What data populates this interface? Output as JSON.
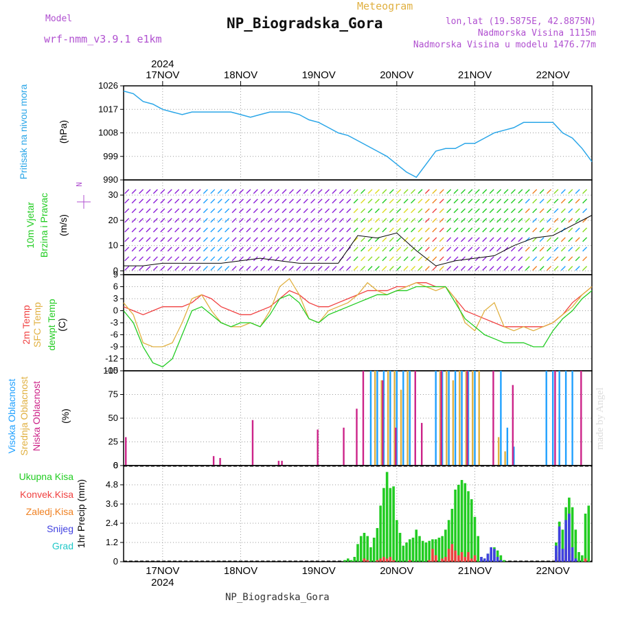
{
  "header": {
    "model_label": "Model",
    "model_name": "wrf-nmm_v3.9.1 e1km",
    "product": "Meteogram",
    "station": "NP_Biogradska_Gora",
    "coords": "lon,lat (19.5875E, 42.8875N)",
    "altitude": "Nadmorska Visina 1115m",
    "model_altitude": "Nadmorska Visina u modelu 1476.77m",
    "footer_station": "NP_Biogradska_Gora",
    "credit": "made by Angel"
  },
  "colors": {
    "pressure": "#2aa6e8",
    "temp2m": "#f04040",
    "sfc_temp": "#e0b040",
    "dewpt": "#22cc22",
    "high_cloud": "#1fa0ff",
    "mid_cloud": "#e0b040",
    "low_cloud": "#cc2288",
    "total_precip": "#22cc22",
    "convective": "#f04040",
    "freezing": "#f08020",
    "snow": "#4040e0",
    "hail": "#20c8c8",
    "wind_violet": "#8c20d8"
  },
  "labels": {
    "pressure": [
      "Pritisak na nivou mora",
      "(hPa)"
    ],
    "wind": [
      "10m Vjetar",
      "Brzina i Pravac",
      "(m/s)"
    ],
    "compass": "N",
    "temp": [
      "2m Temp",
      "SFC Temp",
      "dewpt Temp",
      "(C)"
    ],
    "cloud": [
      "Visoka Oblacnost",
      "Srednja Oblacnost",
      "Niska Oblacnost",
      "(%)"
    ],
    "precip_legend": [
      "Ukupna Kisa",
      "Konvek.Kisa",
      "Zaledj.Kisa",
      "Snijeg",
      "Grad"
    ],
    "precip_axis": "1hr Precip (mm)"
  },
  "chart_data": [
    {
      "type": "line",
      "panel": "pressure",
      "year": "2024",
      "x_ticks": [
        "17NOV",
        "18NOV",
        "19NOV",
        "20NOV",
        "21NOV",
        "22NOV"
      ],
      "ylabel": "(hPa)",
      "ylim": [
        990,
        1026
      ],
      "y_ticks": [
        990,
        999,
        1008,
        1017,
        1026
      ],
      "x_hours": [
        0,
        3,
        6,
        9,
        12,
        15,
        18,
        21,
        24,
        27,
        30,
        33,
        36,
        39,
        42,
        45,
        48,
        51,
        54,
        57,
        60,
        63,
        66,
        69,
        72,
        75,
        78,
        81,
        84,
        87,
        90,
        93,
        96,
        99,
        102,
        105,
        108,
        111,
        114,
        117,
        120,
        123,
        126,
        129,
        132,
        135,
        138,
        141,
        144
      ],
      "series": [
        {
          "name": "Pritisak na nivou mora",
          "values": [
            1024,
            1023,
            1020,
            1019,
            1017,
            1016,
            1015,
            1016,
            1016,
            1016,
            1016,
            1016,
            1015,
            1014,
            1015,
            1016,
            1016,
            1016,
            1015,
            1013,
            1012,
            1010,
            1008,
            1007,
            1005,
            1003,
            1001,
            999,
            996,
            993,
            991,
            996,
            1001,
            1002,
            1002,
            1004,
            1004,
            1006,
            1008,
            1009,
            1010,
            1012,
            1012,
            1012,
            1012,
            1008,
            1006,
            1002,
            997
          ]
        }
      ]
    },
    {
      "type": "line",
      "panel": "wind",
      "ylabel": "(m/s)",
      "ylim": [
        -1.5,
        36
      ],
      "y_ticks": [
        0,
        10,
        20,
        30
      ],
      "x_hours": [
        0,
        6,
        12,
        18,
        24,
        30,
        36,
        42,
        48,
        54,
        60,
        66,
        72,
        78,
        84,
        90,
        96,
        102,
        108,
        114,
        120,
        126,
        132,
        138,
        144
      ],
      "series": [
        {
          "name": "10m Vjetar",
          "values": [
            2,
            2,
            3,
            3,
            3,
            3,
            4,
            5,
            4,
            3,
            3,
            3,
            14,
            13,
            15,
            8,
            2,
            4,
            5,
            6,
            10,
            13,
            14,
            18,
            22
          ]
        }
      ]
    },
    {
      "type": "line",
      "panel": "temperature",
      "ylabel": "(C)",
      "ylim": [
        -15,
        9
      ],
      "y_ticks": [
        -15,
        -12,
        -9,
        -6,
        -3,
        0,
        3,
        6,
        9
      ],
      "x_hours": [
        0,
        3,
        6,
        9,
        12,
        15,
        18,
        21,
        24,
        27,
        30,
        33,
        36,
        39,
        42,
        45,
        48,
        51,
        54,
        57,
        60,
        63,
        66,
        69,
        72,
        75,
        78,
        81,
        84,
        87,
        90,
        93,
        96,
        99,
        102,
        105,
        108,
        111,
        114,
        117,
        120,
        123,
        126,
        129,
        132,
        135,
        138,
        141,
        144
      ],
      "series": [
        {
          "name": "2m Temp",
          "values": [
            1,
            0,
            -1,
            0,
            1,
            1,
            1,
            2,
            4,
            3,
            1,
            0,
            -1,
            -1,
            0,
            1,
            3,
            5,
            4,
            2,
            1,
            1,
            2,
            3,
            4,
            5,
            5,
            5,
            6,
            6,
            7,
            7,
            6,
            6,
            3,
            0,
            -1,
            -2,
            -3,
            -4,
            -4,
            -4,
            -4,
            -4,
            -3,
            -1,
            2,
            4,
            6
          ]
        },
        {
          "name": "SFC Temp",
          "values": [
            2,
            -1,
            -8,
            -9,
            -9,
            -8,
            -3,
            3,
            4,
            0,
            -3,
            -4,
            -4,
            -3,
            -4,
            0,
            6,
            8,
            4,
            -2,
            -3,
            0,
            1,
            2,
            4,
            7,
            5,
            4,
            5,
            6,
            7,
            6,
            5,
            6,
            3,
            -3,
            -5,
            0,
            2,
            -4,
            -5,
            -4,
            -5,
            -4,
            -3,
            -1,
            1,
            4,
            6
          ]
        },
        {
          "name": "dewpt Temp",
          "values": [
            0,
            -3,
            -9,
            -13,
            -14,
            -12,
            -6,
            0,
            1,
            -1,
            -3,
            -4,
            -3,
            -3,
            -4,
            -1,
            3,
            4,
            2,
            -2,
            -3,
            -1,
            0,
            1,
            2,
            3,
            4,
            4,
            5,
            5,
            6,
            6,
            6,
            6,
            2,
            -2,
            -4,
            -6,
            -7,
            -8,
            -8,
            -8,
            -9,
            -9,
            -5,
            -2,
            0,
            3,
            5
          ]
        }
      ]
    },
    {
      "type": "bar",
      "panel": "cloud",
      "ylabel": "(%)",
      "ylim": [
        0,
        100
      ],
      "y_ticks": [
        0,
        25,
        50,
        75,
        100
      ],
      "series": [
        {
          "name": "Visoka Oblacnost",
          "x_hours": [
            76,
            78,
            80,
            82,
            84,
            86,
            88,
            96,
            98,
            100,
            102,
            104,
            106,
            108,
            116,
            118,
            120,
            130,
            132,
            134,
            136,
            138
          ],
          "values": [
            100,
            100,
            100,
            100,
            100,
            100,
            100,
            100,
            100,
            100,
            100,
            100,
            100,
            100,
            100,
            40,
            20,
            100,
            100,
            100,
            100,
            100
          ]
        },
        {
          "name": "Srednja Oblacnost",
          "x_hours": [
            77,
            79,
            81,
            83,
            85,
            87,
            97,
            99,
            101,
            103,
            105,
            107,
            109,
            115,
            117
          ],
          "values": [
            100,
            90,
            100,
            100,
            80,
            100,
            100,
            100,
            90,
            100,
            100,
            100,
            100,
            30,
            15
          ]
        },
        {
          "name": "Niska Oblacnost",
          "x_hours": [
            1,
            28,
            30,
            40,
            48,
            49,
            60,
            68,
            72,
            74,
            80,
            84,
            90,
            92,
            98,
            106,
            114,
            120,
            133,
            141
          ],
          "values": [
            30,
            10,
            8,
            48,
            5,
            5,
            38,
            40,
            60,
            100,
            90,
            40,
            100,
            45,
            100,
            100,
            100,
            85,
            100,
            100
          ]
        }
      ]
    },
    {
      "type": "bar",
      "panel": "precipitation",
      "ylabel": "1hr Precip (mm)",
      "ylim": [
        0,
        6
      ],
      "y_ticks": [
        0,
        1.2,
        2.4,
        3.6,
        4.8,
        6
      ],
      "x_hours": [
        68,
        69,
        70,
        71,
        72,
        73,
        74,
        75,
        76,
        77,
        78,
        79,
        80,
        81,
        82,
        83,
        84,
        85,
        86,
        87,
        88,
        89,
        90,
        91,
        92,
        93,
        94,
        95,
        96,
        97,
        98,
        99,
        100,
        101,
        102,
        103,
        104,
        105,
        106,
        107,
        108,
        109,
        110,
        111,
        112,
        113,
        114,
        115,
        116,
        117,
        133,
        134,
        135,
        136,
        137,
        138,
        139,
        140,
        141,
        142,
        143
      ],
      "series": [
        {
          "name": "Ukupna Kisa",
          "values": [
            0.1,
            0.2,
            0.1,
            0.3,
            1.1,
            1.6,
            1.8,
            1.6,
            0.9,
            1.5,
            2.1,
            3.5,
            4.6,
            5.6,
            4.6,
            4.7,
            2.6,
            1.8,
            1.0,
            1.2,
            1.4,
            1.5,
            2.0,
            1.6,
            1.3,
            1.2,
            1.3,
            1.4,
            1.4,
            1.5,
            1.6,
            2.0,
            2.6,
            3.3,
            4.5,
            4.8,
            5.1,
            4.9,
            4.4,
            3.9,
            2.8,
            1.6,
            0.3,
            0.2,
            0.5,
            0.6,
            0.9,
            0.7,
            0.4,
            0.1,
            1.2,
            2.5,
            2.0,
            3.4,
            4.0,
            3.4,
            2.0,
            0.6,
            0.4,
            3.0,
            3.5
          ]
        },
        {
          "name": "Konvek.Kisa",
          "values": [
            0,
            0,
            0,
            0,
            0,
            0,
            0.2,
            0.1,
            0,
            0,
            0.1,
            0.2,
            0.3,
            0.2,
            0.3,
            0.1,
            0,
            0,
            0,
            0,
            0.1,
            0,
            0,
            0,
            0,
            0,
            0.1,
            0.8,
            0.4,
            0,
            0.2,
            0.3,
            0.8,
            1.1,
            0.7,
            0.4,
            0.6,
            0.3,
            0.6,
            0.2,
            0.4,
            0,
            0,
            0,
            0,
            0,
            0,
            0,
            0,
            0,
            0.3,
            0.6,
            0.2,
            0.9,
            1.2,
            0.5,
            0.1,
            0,
            0,
            0.2,
            0
          ]
        },
        {
          "name": "Snijeg",
          "values": [
            0,
            0,
            0,
            0,
            0,
            0,
            0,
            0,
            0,
            0,
            0,
            0,
            0,
            0,
            0,
            0,
            0,
            0,
            0,
            0,
            0,
            0,
            0,
            0,
            0,
            0,
            0,
            0,
            0,
            0,
            0,
            0,
            0,
            0,
            0,
            0,
            0,
            0,
            0,
            0,
            0,
            0,
            0.3,
            0.2,
            0.5,
            0.9,
            0.8,
            0.3,
            0.1,
            0,
            1.0,
            2.2,
            0.8,
            2.6,
            3.0,
            0.9,
            0.2,
            0,
            0,
            0,
            0
          ]
        }
      ]
    }
  ]
}
